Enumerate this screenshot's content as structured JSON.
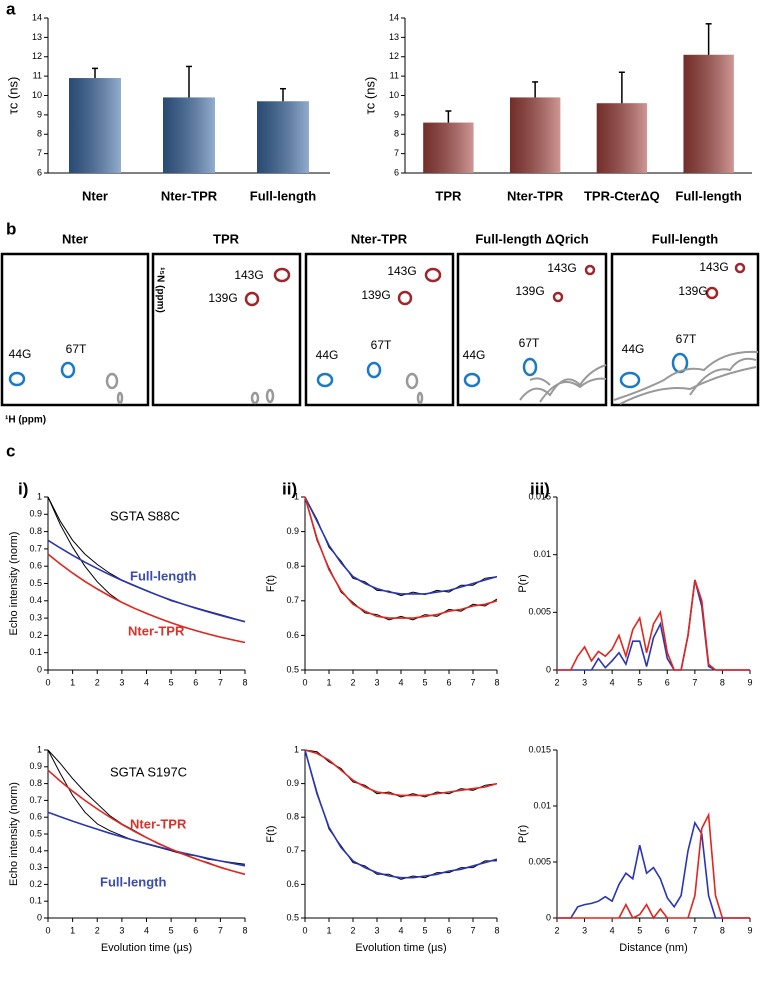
{
  "labels": {
    "a": "a",
    "b": "b",
    "c": "c",
    "i": "i)",
    "ii": "ii)",
    "iii": "iii)"
  },
  "nmr": {
    "y_axis_label": "¹⁵N (ppm)",
    "x_axis_label": "¹H (ppm)",
    "panels": [
      {
        "title": "Nter",
        "peaks": [
          "44G",
          "67T"
        ]
      },
      {
        "title": "TPR",
        "peaks": [
          "143G",
          "139G"
        ]
      },
      {
        "title": "Nter-TPR",
        "peaks": [
          "143G",
          "139G",
          "44G",
          "67T"
        ]
      },
      {
        "title": "Full-length ΔQrich",
        "peaks": [
          "143G",
          "139G",
          "44G",
          "67T"
        ]
      },
      {
        "title": "Full-length",
        "peaks": [
          "143G",
          "139G",
          "44G",
          "67T"
        ]
      }
    ]
  },
  "chart_data": [
    {
      "type": "bar",
      "ylabel": "τc (ns)",
      "categories": [
        "Nter",
        "Nter-TPR",
        "Full-length"
      ],
      "values": [
        10.9,
        9.9,
        9.7
      ],
      "errors": [
        0.5,
        1.6,
        0.65
      ],
      "color": "#3a6aa5",
      "ylim": [
        6,
        14
      ],
      "yticks": [
        6,
        7,
        8,
        9,
        10,
        11,
        12,
        13,
        14
      ]
    },
    {
      "type": "bar",
      "ylabel": "τc (ns)",
      "categories": [
        "TPR",
        "Nter-TPR",
        "TPR-CterΔQ",
        "Full-length"
      ],
      "values": [
        8.6,
        9.9,
        9.6,
        12.1
      ],
      "errors": [
        0.6,
        0.8,
        1.6,
        1.6
      ],
      "color": "#a5423d",
      "ylim": [
        6,
        14
      ],
      "yticks": [
        6,
        7,
        8,
        9,
        10,
        11,
        12,
        13,
        14
      ]
    },
    {
      "type": "line",
      "ylabel": "Echo intensity (norm)",
      "annotations": [
        {
          "text": "SGTA S88C",
          "color": "#000000"
        },
        {
          "text": "Full-length",
          "color": "#3a4bb0"
        },
        {
          "text": "Nter-TPR",
          "color": "#d8322a"
        }
      ],
      "x": [
        0,
        0.5,
        1,
        1.5,
        2,
        2.5,
        3,
        3.5,
        4,
        4.5,
        5,
        5.5,
        6,
        6.5,
        7,
        7.5,
        8
      ],
      "xlim": [
        0,
        8
      ],
      "xticks": [
        0,
        1,
        2,
        3,
        4,
        5,
        6,
        7,
        8
      ],
      "ylim": [
        0,
        1
      ],
      "yticks": [
        0,
        0.1,
        0.2,
        0.3,
        0.4,
        0.5,
        0.6,
        0.7,
        0.8,
        0.9,
        1
      ],
      "series": [
        {
          "color": "#000000",
          "values": [
            1,
            0.86,
            0.75,
            0.67,
            0.61,
            0.56,
            0.52,
            0.49,
            0.46,
            0.43,
            0.4,
            0.38,
            0.36,
            0.34,
            0.32,
            0.3,
            0.28
          ]
        },
        {
          "color": "#000000",
          "values": [
            1,
            0.84,
            0.71,
            0.6,
            0.51,
            0.44,
            0.39,
            0.357,
            0.327,
            0.299,
            0.273,
            0.249,
            0.228,
            0.208,
            0.19,
            0.174,
            0.159
          ]
        },
        {
          "color": "#2a35b5",
          "values": [
            0.75,
            0.705,
            0.663,
            0.623,
            0.586,
            0.551,
            0.518,
            0.487,
            0.458,
            0.43,
            0.404,
            0.38,
            0.357,
            0.336,
            0.316,
            0.297,
            0.279
          ]
        },
        {
          "color": "#e0261e",
          "values": [
            0.67,
            0.613,
            0.56,
            0.512,
            0.468,
            0.428,
            0.391,
            0.357,
            0.327,
            0.299,
            0.273,
            0.249,
            0.228,
            0.208,
            0.19,
            0.174,
            0.159
          ]
        }
      ]
    },
    {
      "type": "line",
      "ylabel": "F(t)",
      "annotations": [],
      "x": [
        0,
        0.5,
        1,
        1.5,
        2,
        2.5,
        3,
        3.5,
        4,
        4.5,
        5,
        5.5,
        6,
        6.5,
        7,
        7.5,
        8
      ],
      "xlim": [
        0,
        8
      ],
      "xticks": [
        0,
        1,
        2,
        3,
        4,
        5,
        6,
        7,
        8
      ],
      "ylim": [
        0.5,
        1
      ],
      "yticks": [
        0.5,
        0.6,
        0.7,
        0.8,
        0.9,
        1
      ],
      "series": [
        {
          "color": "#000000",
          "values": [
            1,
            0.935,
            0.855,
            0.815,
            0.765,
            0.755,
            0.73,
            0.728,
            0.715,
            0.725,
            0.718,
            0.73,
            0.725,
            0.745,
            0.745,
            0.765,
            0.77
          ]
        },
        {
          "color": "#000000",
          "values": [
            1,
            0.875,
            0.795,
            0.725,
            0.695,
            0.665,
            0.66,
            0.645,
            0.655,
            0.645,
            0.66,
            0.655,
            0.675,
            0.67,
            0.69,
            0.685,
            0.705
          ]
        },
        {
          "color": "#2a35b5",
          "values": [
            1,
            0.93,
            0.86,
            0.81,
            0.77,
            0.75,
            0.735,
            0.725,
            0.72,
            0.72,
            0.72,
            0.725,
            0.73,
            0.74,
            0.75,
            0.76,
            0.77
          ]
        },
        {
          "color": "#e0261e",
          "values": [
            1,
            0.88,
            0.79,
            0.73,
            0.69,
            0.67,
            0.655,
            0.65,
            0.65,
            0.65,
            0.655,
            0.66,
            0.67,
            0.675,
            0.685,
            0.69,
            0.7
          ]
        }
      ]
    },
    {
      "type": "line",
      "ylabel": "P(r)",
      "annotations": [],
      "x": [
        2,
        2.25,
        2.5,
        2.75,
        3,
        3.25,
        3.5,
        3.75,
        4,
        4.25,
        4.5,
        4.75,
        5,
        5.25,
        5.5,
        5.75,
        6,
        6.25,
        6.5,
        6.75,
        7,
        7.25,
        7.5,
        7.75,
        8,
        8.25,
        8.5,
        8.75,
        9
      ],
      "xlim": [
        2,
        9
      ],
      "xticks": [
        2,
        3,
        4,
        5,
        6,
        7,
        8,
        9
      ],
      "ylim": [
        0,
        0.015
      ],
      "yticks": [
        0,
        0.005,
        0.01,
        0.015
      ],
      "series": [
        {
          "color": "#2a35b5",
          "values": [
            0,
            0,
            0,
            0,
            0,
            0,
            0.001,
            0.0002,
            0.0008,
            0.0015,
            0.0005,
            0.0025,
            0.0025,
            0.0003,
            0.0028,
            0.004,
            0.001,
            0,
            0,
            0.003,
            0.0078,
            0.0055,
            0.0003,
            0,
            0,
            0,
            0,
            0,
            0
          ]
        },
        {
          "color": "#e0261e",
          "values": [
            0,
            0,
            0,
            0.0012,
            0.002,
            0.0008,
            0.0016,
            0.0012,
            0.0018,
            0.003,
            0.0012,
            0.0035,
            0.0045,
            0.0015,
            0.004,
            0.005,
            0.0015,
            0,
            0,
            0.003,
            0.0078,
            0.006,
            0.0005,
            0,
            0,
            0,
            0,
            0,
            0
          ]
        }
      ]
    },
    {
      "type": "line",
      "ylabel": "Echo intensity (norm)",
      "xlabel": "Evolution time (µs)",
      "annotations": [
        {
          "text": "SGTA S197C",
          "color": "#000000"
        },
        {
          "text": "Nter-TPR",
          "color": "#d8322a"
        },
        {
          "text": "Full-length",
          "color": "#3a4bb0"
        }
      ],
      "x": [
        0,
        0.5,
        1,
        1.5,
        2,
        2.5,
        3,
        3.5,
        4,
        4.5,
        5,
        5.5,
        6,
        6.5,
        7,
        7.5,
        8
      ],
      "xlim": [
        0,
        8
      ],
      "xticks": [
        0,
        1,
        2,
        3,
        4,
        5,
        6,
        7,
        8
      ],
      "ylim": [
        0,
        1
      ],
      "yticks": [
        0,
        0.1,
        0.2,
        0.3,
        0.4,
        0.5,
        0.6,
        0.7,
        0.8,
        0.9,
        1
      ],
      "series": [
        {
          "color": "#000000",
          "values": [
            1,
            0.92,
            0.83,
            0.75,
            0.68,
            0.61,
            0.56,
            0.52,
            0.48,
            0.44,
            0.41,
            0.38,
            0.35,
            0.33,
            0.3,
            0.28,
            0.26
          ]
        },
        {
          "color": "#000000",
          "values": [
            1,
            0.86,
            0.73,
            0.63,
            0.56,
            0.52,
            0.49,
            0.46,
            0.44,
            0.42,
            0.4,
            0.38,
            0.37,
            0.35,
            0.34,
            0.33,
            0.32
          ]
        },
        {
          "color": "#2a35b5",
          "values": [
            0.63,
            0.603,
            0.577,
            0.552,
            0.528,
            0.505,
            0.483,
            0.462,
            0.442,
            0.423,
            0.405,
            0.387,
            0.371,
            0.355,
            0.339,
            0.325,
            0.311
          ]
        },
        {
          "color": "#e0261e",
          "values": [
            0.88,
            0.815,
            0.755,
            0.7,
            0.649,
            0.601,
            0.557,
            0.516,
            0.478,
            0.443,
            0.41,
            0.38,
            0.352,
            0.326,
            0.302,
            0.28,
            0.26
          ]
        }
      ]
    },
    {
      "type": "line",
      "ylabel": "F(t)",
      "xlabel": "Evolution time (µs)",
      "annotations": [],
      "x": [
        0,
        0.5,
        1,
        1.5,
        2,
        2.5,
        3,
        3.5,
        4,
        4.5,
        5,
        5.5,
        6,
        6.5,
        7,
        7.5,
        8
      ],
      "xlim": [
        0,
        8
      ],
      "xticks": [
        0,
        1,
        2,
        3,
        4,
        5,
        6,
        7,
        8
      ],
      "ylim": [
        0.5,
        1
      ],
      "yticks": [
        0.5,
        0.6,
        0.7,
        0.8,
        0.9,
        1
      ],
      "series": [
        {
          "color": "#000000",
          "values": [
            1,
            0.995,
            0.965,
            0.945,
            0.905,
            0.895,
            0.87,
            0.875,
            0.86,
            0.87,
            0.86,
            0.875,
            0.87,
            0.885,
            0.88,
            0.895,
            0.9
          ]
        },
        {
          "color": "#000000",
          "values": [
            1,
            0.875,
            0.765,
            0.715,
            0.665,
            0.655,
            0.63,
            0.63,
            0.615,
            0.625,
            0.62,
            0.635,
            0.635,
            0.65,
            0.65,
            0.67,
            0.67
          ]
        },
        {
          "color": "#2a35b5",
          "values": [
            1,
            0.87,
            0.77,
            0.71,
            0.67,
            0.65,
            0.635,
            0.625,
            0.62,
            0.62,
            0.625,
            0.63,
            0.64,
            0.645,
            0.655,
            0.665,
            0.675
          ]
        },
        {
          "color": "#e0261e",
          "values": [
            1,
            0.99,
            0.97,
            0.94,
            0.91,
            0.89,
            0.875,
            0.87,
            0.865,
            0.865,
            0.865,
            0.87,
            0.875,
            0.88,
            0.885,
            0.89,
            0.9
          ]
        }
      ]
    },
    {
      "type": "line",
      "ylabel": "P(r)",
      "xlabel": "Distance (nm)",
      "annotations": [],
      "x": [
        2,
        2.25,
        2.5,
        2.75,
        3,
        3.25,
        3.5,
        3.75,
        4,
        4.25,
        4.5,
        4.75,
        5,
        5.25,
        5.5,
        5.75,
        6,
        6.25,
        6.5,
        6.75,
        7,
        7.25,
        7.5,
        7.75,
        8,
        8.25,
        8.5,
        8.75,
        9
      ],
      "xlim": [
        2,
        9
      ],
      "xticks": [
        2,
        3,
        4,
        5,
        6,
        7,
        8,
        9
      ],
      "ylim": [
        0,
        0.015
      ],
      "yticks": [
        0,
        0.005,
        0.01,
        0.015
      ],
      "series": [
        {
          "color": "#2a35b5",
          "values": [
            0,
            0,
            0,
            0.001,
            0.0012,
            0.0013,
            0.0015,
            0.0019,
            0.0015,
            0.003,
            0.004,
            0.0035,
            0.0065,
            0.004,
            0.0045,
            0.0035,
            0.0018,
            0.001,
            0.002,
            0.006,
            0.0085,
            0.0075,
            0.002,
            0,
            0,
            0,
            0,
            0,
            0
          ]
        },
        {
          "color": "#e0261e",
          "values": [
            0,
            0,
            0,
            0,
            0,
            0,
            0,
            0,
            0,
            0,
            0.0012,
            0,
            0.0003,
            0.0012,
            0,
            0.0008,
            0,
            0,
            0,
            0,
            0.002,
            0.008,
            0.0092,
            0.002,
            0,
            0,
            0,
            0,
            0
          ]
        }
      ]
    }
  ]
}
